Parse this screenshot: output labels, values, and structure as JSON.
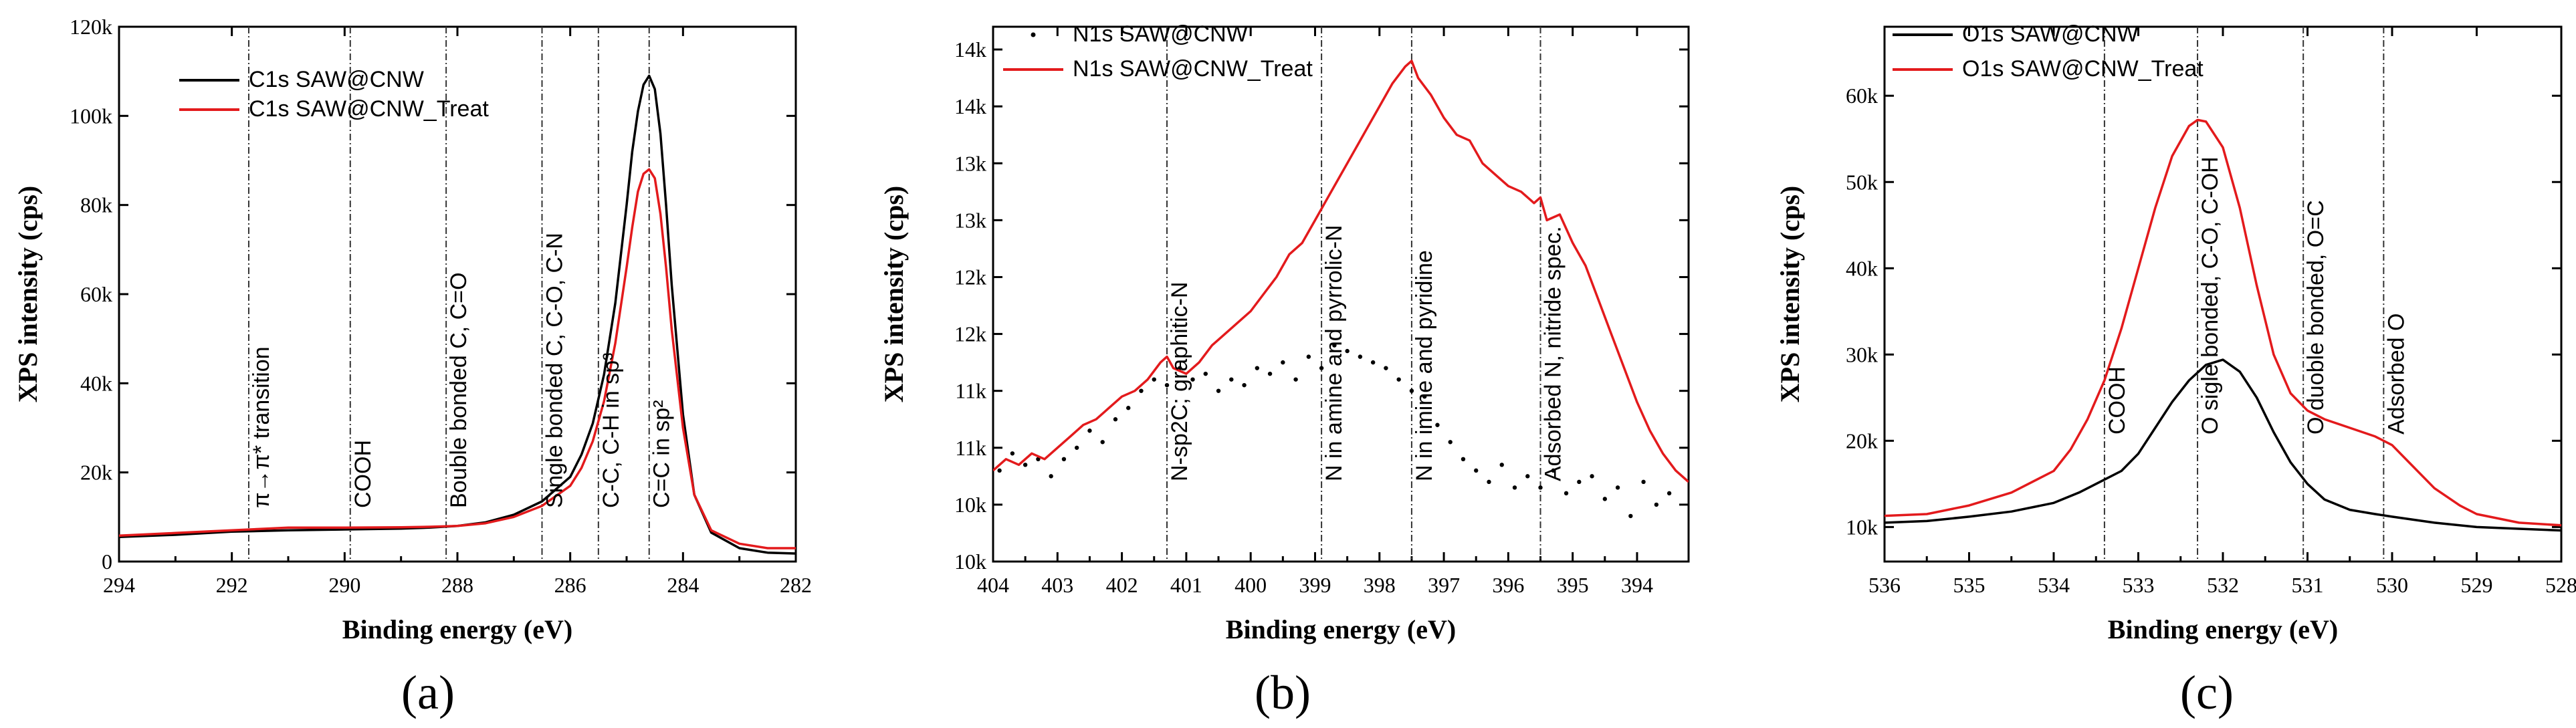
{
  "chart_data": [
    {
      "panel": "(a)",
      "type": "line",
      "xlabel": "Binding energy (eV)",
      "ylabel": "XPS intensity (cps)",
      "xlim": [
        294,
        282
      ],
      "ylim": [
        0,
        120000
      ],
      "xticks": [
        294,
        292,
        290,
        288,
        286,
        284,
        282
      ],
      "xtick_labels": [
        "294",
        "292",
        "290",
        "288",
        "286",
        "284",
        "282"
      ],
      "yticks": [
        0,
        20000,
        40000,
        60000,
        80000,
        100000,
        120000
      ],
      "ytick_labels": [
        "0",
        "20k",
        "40k",
        "60k",
        "80k",
        "100k",
        "120k"
      ],
      "legend_position": "top-left",
      "series": [
        {
          "name": "C1s SAW@CNW",
          "color": "#000000",
          "style": "line",
          "x": [
            294,
            293,
            292,
            291,
            290,
            289,
            288.5,
            288,
            287.5,
            287,
            286.5,
            286,
            285.8,
            285.6,
            285.4,
            285.2,
            285,
            284.9,
            284.8,
            284.7,
            284.6,
            284.5,
            284.4,
            284.3,
            284.2,
            284,
            283.8,
            283.5,
            283,
            282.5,
            282
          ],
          "y": [
            5500,
            6000,
            6700,
            7000,
            7200,
            7400,
            7600,
            8000,
            8800,
            10500,
            13500,
            19000,
            24000,
            31000,
            42000,
            58000,
            80000,
            92000,
            101000,
            107000,
            109000,
            106000,
            96000,
            80000,
            62000,
            33000,
            15000,
            6500,
            3000,
            2000,
            1800
          ]
        },
        {
          "name": "C1s SAW@CNW_Treat",
          "color": "#e31a1c",
          "style": "line",
          "x": [
            294,
            293,
            292,
            291,
            290,
            289,
            288.5,
            288,
            287.5,
            287,
            286.5,
            286,
            285.8,
            285.6,
            285.4,
            285.2,
            285,
            284.9,
            284.8,
            284.7,
            284.6,
            284.5,
            284.4,
            284.3,
            284.2,
            284,
            283.8,
            283.5,
            283,
            282.5,
            282
          ],
          "y": [
            5800,
            6400,
            7000,
            7600,
            7600,
            7700,
            7800,
            8000,
            8600,
            10000,
            12500,
            17000,
            21000,
            27000,
            36000,
            49000,
            66000,
            75000,
            83000,
            87000,
            88000,
            86000,
            78000,
            66000,
            52000,
            30000,
            15000,
            7000,
            4000,
            3000,
            3000
          ]
        }
      ],
      "annotations": [
        {
          "x": 291.7,
          "text": "π→π* transition"
        },
        {
          "x": 289.9,
          "text": "COOH"
        },
        {
          "x": 288.2,
          "text": "Bouble bonded C, C=O"
        },
        {
          "x": 286.5,
          "text": "Single bonded C, C-O, C-N"
        },
        {
          "x": 285.5,
          "text": "C-C, C-H in sp³"
        },
        {
          "x": 284.6,
          "text": "C=C in sp²"
        }
      ]
    },
    {
      "panel": "(b)",
      "type": "line",
      "xlabel": "Binding energy (eV)",
      "ylabel": "XPS intensity (cps)",
      "xlim": [
        404,
        393.2
      ],
      "ylim": [
        9500,
        14200
      ],
      "xticks": [
        404,
        403,
        402,
        401,
        400,
        399,
        398,
        397,
        396,
        395,
        394
      ],
      "xtick_labels": [
        "404",
        "403",
        "402",
        "401",
        "400",
        "399",
        "398",
        "397",
        "396",
        "395",
        "394"
      ],
      "yticks": [
        9500,
        10000,
        10500,
        11000,
        11500,
        12000,
        12500,
        13000,
        13500,
        14000
      ],
      "ytick_labels": [
        "10k",
        "10k",
        "11k",
        "11k",
        "12k",
        "12k",
        "13k",
        "13k",
        "14k",
        "14k"
      ],
      "legend_position": "top-left",
      "series": [
        {
          "name": "N1s SAW@CNW",
          "color": "#000000",
          "style": "dots",
          "x": [
            403.9,
            403.7,
            403.5,
            403.3,
            403.1,
            402.9,
            402.7,
            402.5,
            402.3,
            402.1,
            401.9,
            401.7,
            401.5,
            401.3,
            401.1,
            400.9,
            400.7,
            400.5,
            400.3,
            400.1,
            399.9,
            399.7,
            399.5,
            399.3,
            399.1,
            398.9,
            398.7,
            398.5,
            398.3,
            398.1,
            397.9,
            397.7,
            397.5,
            397.3,
            397.1,
            396.9,
            396.7,
            396.5,
            396.3,
            396.1,
            395.9,
            395.7,
            395.5,
            395.3,
            395.1,
            394.9,
            394.7,
            394.5,
            394.3,
            394.1,
            393.9,
            393.7,
            393.5
          ],
          "y": [
            10300,
            10450,
            10350,
            10400,
            10250,
            10400,
            10500,
            10650,
            10550,
            10750,
            10850,
            11000,
            11100,
            11050,
            11200,
            11100,
            11150,
            11000,
            11100,
            11050,
            11200,
            11150,
            11250,
            11100,
            11300,
            11200,
            11400,
            11350,
            11300,
            11250,
            11200,
            11100,
            11000,
            10950,
            10700,
            10550,
            10400,
            10300,
            10200,
            10350,
            10150,
            10250,
            10150,
            10300,
            10100,
            10200,
            10250,
            10050,
            10150,
            9900,
            10200,
            10000,
            10100
          ]
        },
        {
          "name": "N1s SAW@CNW_Treat",
          "color": "#e31a1c",
          "style": "line",
          "x": [
            404,
            403.8,
            403.6,
            403.4,
            403.2,
            403,
            402.8,
            402.6,
            402.4,
            402.2,
            402,
            401.8,
            401.6,
            401.4,
            401.3,
            401.2,
            401,
            400.8,
            400.6,
            400.4,
            400.2,
            400,
            399.8,
            399.6,
            399.4,
            399.2,
            399,
            398.8,
            398.6,
            398.4,
            398.2,
            398,
            397.8,
            397.6,
            397.5,
            397.4,
            397.2,
            397,
            396.8,
            396.6,
            396.4,
            396.2,
            396,
            395.8,
            395.6,
            395.5,
            395.4,
            395.2,
            395,
            394.8,
            394.6,
            394.4,
            394.2,
            394,
            393.8,
            393.6,
            393.4,
            393.2
          ],
          "y": [
            10300,
            10400,
            10350,
            10450,
            10400,
            10500,
            10600,
            10700,
            10750,
            10850,
            10950,
            11000,
            11100,
            11250,
            11300,
            11200,
            11150,
            11250,
            11400,
            11500,
            11600,
            11700,
            11850,
            12000,
            12200,
            12300,
            12500,
            12700,
            12900,
            13100,
            13300,
            13500,
            13700,
            13850,
            13900,
            13750,
            13600,
            13400,
            13250,
            13200,
            13000,
            12900,
            12800,
            12750,
            12650,
            12700,
            12500,
            12550,
            12300,
            12100,
            11800,
            11500,
            11200,
            10900,
            10650,
            10450,
            10300,
            10200
          ]
        }
      ],
      "annotations": [
        {
          "x": 401.3,
          "text": "N-sp2C; graphitic-N"
        },
        {
          "x": 398.9,
          "text": "N in amine and pyrrolic-N"
        },
        {
          "x": 397.5,
          "text": "N in imine and pyridine"
        },
        {
          "x": 395.5,
          "text": "Adsorbed N, nitride spec."
        }
      ]
    },
    {
      "panel": "(c)",
      "type": "line",
      "xlabel": "Binding energy (eV)",
      "ylabel": "XPS intensity (cps)",
      "xlim": [
        536,
        528
      ],
      "ylim": [
        6000,
        68000
      ],
      "xticks": [
        536,
        535,
        534,
        533,
        532,
        531,
        530,
        529,
        528
      ],
      "xtick_labels": [
        "536",
        "535",
        "534",
        "533",
        "532",
        "531",
        "530",
        "529",
        "528"
      ],
      "yticks": [
        10000,
        20000,
        30000,
        40000,
        50000,
        60000
      ],
      "ytick_labels": [
        "10k",
        "20k",
        "30k",
        "40k",
        "50k",
        "60k"
      ],
      "legend_position": "top-left",
      "series": [
        {
          "name": "O1s SAW@CNW",
          "color": "#000000",
          "style": "line",
          "x": [
            536,
            535.5,
            535,
            534.5,
            534,
            533.7,
            533.4,
            533.2,
            533,
            532.8,
            532.6,
            532.4,
            532.2,
            532,
            531.8,
            531.6,
            531.4,
            531.2,
            531,
            530.8,
            530.5,
            530.2,
            530,
            529.5,
            529,
            528.5,
            528
          ],
          "y": [
            10500,
            10700,
            11200,
            11800,
            12800,
            14000,
            15500,
            16500,
            18500,
            21500,
            24500,
            27000,
            28800,
            29400,
            28000,
            25000,
            21000,
            17500,
            15000,
            13200,
            12000,
            11500,
            11200,
            10500,
            10000,
            9800,
            9600
          ]
        },
        {
          "name": "O1s SAW@CNW_Treat",
          "color": "#e31a1c",
          "style": "line",
          "x": [
            536,
            535.5,
            535,
            534.5,
            534,
            533.8,
            533.6,
            533.4,
            533.2,
            533,
            532.8,
            532.6,
            532.4,
            532.3,
            532.2,
            532,
            531.8,
            531.6,
            531.4,
            531.2,
            531,
            530.8,
            530.5,
            530.2,
            530,
            529.8,
            529.5,
            529.2,
            529,
            528.5,
            528
          ],
          "y": [
            11300,
            11500,
            12500,
            14000,
            16500,
            19000,
            22500,
            27000,
            33000,
            40000,
            47000,
            53000,
            56500,
            57200,
            57000,
            54000,
            47000,
            38000,
            30000,
            25500,
            23500,
            22500,
            21500,
            20500,
            19500,
            17500,
            14500,
            12500,
            11500,
            10500,
            10200
          ]
        }
      ],
      "annotations": [
        {
          "x": 533.4,
          "text": "COOH"
        },
        {
          "x": 532.3,
          "text": "O sigle bonded, C-O, C-OH"
        },
        {
          "x": 531.05,
          "text": "O duoble bonded, O=C"
        },
        {
          "x": 530.1,
          "text": "Adsorbed O"
        }
      ]
    }
  ]
}
